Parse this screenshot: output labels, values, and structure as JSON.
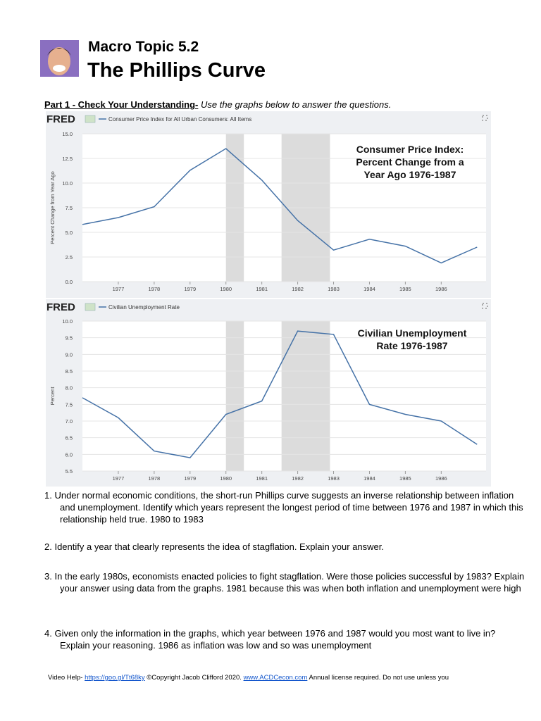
{
  "header": {
    "topic": "Macro Topic 5.2",
    "title": "The Phillips Curve"
  },
  "part": {
    "label": "Part 1 - Check Your Understanding-",
    "instruction": "Use the graphs below to answer the questions."
  },
  "chart_data": [
    {
      "type": "line",
      "logo": "FRED",
      "legend": "Consumer Price Index for All Urban Consumers: All Items",
      "ylabel": "Percent Change from Year Ago",
      "title_lines": [
        "Consumer Price Index:",
        "Percent Change from a",
        "Year Ago 1976-1987"
      ],
      "x": [
        1976,
        1977,
        1978,
        1979,
        1980,
        1981,
        1982,
        1983,
        1984,
        1985,
        1986,
        1987
      ],
      "series": [
        {
          "name": "Consumer Price Index for All Urban Consumers: All Items",
          "color": "#4572a7",
          "values": [
            5.8,
            6.5,
            7.6,
            11.3,
            13.5,
            10.3,
            6.2,
            3.2,
            4.3,
            3.6,
            1.9,
            3.5
          ]
        }
      ],
      "recessions": [
        [
          1980.0,
          1980.5
        ],
        [
          1981.55,
          1982.9
        ]
      ],
      "xlim": [
        1976,
        1987.25
      ],
      "xticks": [
        1977,
        1978,
        1979,
        1980,
        1981,
        1982,
        1983,
        1984,
        1985,
        1986
      ],
      "ylim": [
        0,
        15
      ],
      "yticks": [
        {
          "value": 0,
          "label": "0.0"
        },
        2.5,
        {
          "value": 5,
          "label": "5.0"
        },
        7.5,
        {
          "value": 10,
          "label": "10.0"
        },
        12.5,
        {
          "value": 15,
          "label": "15.0"
        }
      ],
      "grid": true
    },
    {
      "type": "line",
      "logo": "FRED",
      "legend": "Civilian Unemployment Rate",
      "ylabel": "Percent",
      "title_lines": [
        "Civilian Unemployment",
        "Rate 1976-1987"
      ],
      "x": [
        1976,
        1977,
        1978,
        1979,
        1980,
        1981,
        1982,
        1983,
        1984,
        1985,
        1986,
        1987
      ],
      "series": [
        {
          "name": "Civilian Unemployment Rate",
          "color": "#4572a7",
          "values": [
            7.7,
            7.1,
            6.1,
            5.9,
            7.2,
            7.6,
            9.7,
            9.6,
            7.5,
            7.2,
            7.0,
            6.3
          ]
        }
      ],
      "recessions": [
        [
          1980.0,
          1980.5
        ],
        [
          1981.55,
          1982.9
        ]
      ],
      "xlim": [
        1976,
        1987.25
      ],
      "xticks": [
        1977,
        1978,
        1979,
        1980,
        1981,
        1982,
        1983,
        1984,
        1985,
        1986
      ],
      "ylim": [
        5.5,
        10
      ],
      "yticks": [
        5.5,
        {
          "value": 6,
          "label": "6.0"
        },
        6.5,
        {
          "value": 7,
          "label": "7.0"
        },
        7.5,
        {
          "value": 8,
          "label": "8.0"
        },
        8.5,
        {
          "value": 9,
          "label": "9.0"
        },
        9.5,
        {
          "value": 10,
          "label": "10.0"
        }
      ],
      "grid": true
    }
  ],
  "questions": [
    "1. Under normal economic conditions, the short-run Phillips curve suggests an inverse relationship between inflation and unemployment. Identify which years represent the longest period of time between 1976 and 1987 in which this relationship held true. 1980 to 1983",
    "2. Identify a year that clearly represents the idea of stagflation. Explain your answer.",
    "3. In the early 1980s, economists enacted policies to fight stagflation. Were those policies successful by 1983? Explain your answer using data from the graphs. 1981 because this was when both inflation and unemployment were high",
    "4. Given only the information in the graphs, which year between 1976 and 1987 would you most want to live in? Explain your reasoning. 1986 as inflation was low and so was unemployment"
  ],
  "footer": {
    "prefix": "Video Help-",
    "link1": "https://goo.gl/Tt68ky",
    "copyright": "©Copyright Jacob Clifford 2020.",
    "link2": "www.ACDCecon.com",
    "note": "Annual license required. Do not use unless you"
  }
}
